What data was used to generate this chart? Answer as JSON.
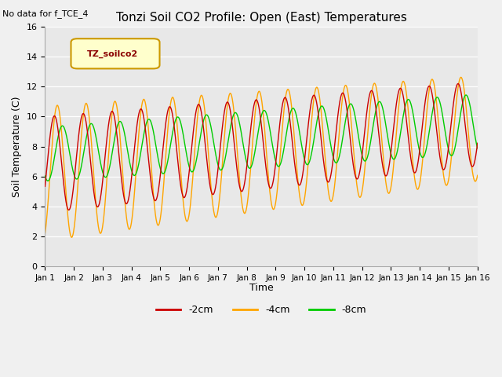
{
  "title": "Tonzi Soil CO2 Profile: Open (East) Temperatures",
  "subtitle": "No data for f_TCE_4",
  "ylabel": "Soil Temperature (C)",
  "xlabel": "Time",
  "legend_title": "TZ_soilco2",
  "legend_entries": [
    "-2cm",
    "-4cm",
    "-8cm"
  ],
  "colors": {
    "minus2": "#cc0000",
    "minus4": "#ffa500",
    "minus8": "#00cc00"
  },
  "ylim": [
    0,
    16
  ],
  "xtick_labels": [
    "Jan 1",
    "Jan 2",
    "Jan 3",
    "Jan 4",
    "Jan 5",
    "Jan 6",
    "Jan 7",
    "Jan 8",
    "Jan 9",
    "Jan 10",
    "Jan 11",
    "Jan 12",
    "Jan 13",
    "Jan 14",
    "Jan 15",
    "Jan 16"
  ],
  "ytick_vals": [
    0,
    2,
    4,
    6,
    8,
    10,
    12,
    14,
    16
  ],
  "bg_color": "#e8e8e8",
  "n_days": 15,
  "pts_per_day": 120
}
